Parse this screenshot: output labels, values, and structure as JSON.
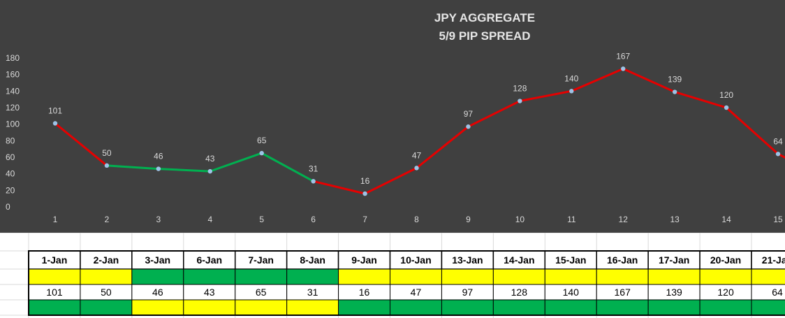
{
  "chart_data": {
    "type": "line",
    "title": [
      "JPY AGGREGATE",
      "5/9 PIP SPREAD"
    ],
    "x": [
      1,
      2,
      3,
      4,
      5,
      6,
      7,
      8,
      9,
      10,
      11,
      12,
      13,
      14,
      15
    ],
    "values": [
      101,
      50,
      46,
      43,
      65,
      31,
      16,
      47,
      97,
      128,
      140,
      167,
      139,
      120,
      64
    ],
    "y_ticks": [
      0,
      20,
      40,
      60,
      80,
      100,
      120,
      140,
      160,
      180
    ],
    "ylim": [
      0,
      180
    ],
    "grid": false,
    "segment_colors": [
      "#e60000",
      "#00b050",
      "#00b050",
      "#00b050",
      "#00b050",
      "#e60000",
      "#e60000",
      "#e60000",
      "#e60000",
      "#e60000",
      "#e60000",
      "#e60000",
      "#e60000",
      "#e60000"
    ],
    "marker_color": "#9dc3e6",
    "background": "#404040"
  },
  "table": {
    "dates": [
      "1-Jan",
      "2-Jan",
      "3-Jan",
      "6-Jan",
      "7-Jan",
      "8-Jan",
      "9-Jan",
      "10-Jan",
      "13-Jan",
      "14-Jan",
      "15-Jan",
      "16-Jan",
      "17-Jan",
      "20-Jan",
      "21-Jan"
    ],
    "values": [
      "101",
      "50",
      "46",
      "43",
      "65",
      "31",
      "16",
      "47",
      "97",
      "128",
      "140",
      "167",
      "139",
      "120",
      "64"
    ],
    "row_above_colors": [
      "#ffff00",
      "#ffff00",
      "#00b050",
      "#00b050",
      "#00b050",
      "#00b050",
      "#ffff00",
      "#ffff00",
      "#ffff00",
      "#ffff00",
      "#ffff00",
      "#ffff00",
      "#ffff00",
      "#ffff00",
      "#ffff00"
    ],
    "row_below_colors": [
      "#00b050",
      "#00b050",
      "#ffff00",
      "#ffff00",
      "#ffff00",
      "#ffff00",
      "#00b050",
      "#00b050",
      "#00b050",
      "#00b050",
      "#00b050",
      "#00b050",
      "#00b050",
      "#00b050",
      "#00b050"
    ]
  }
}
